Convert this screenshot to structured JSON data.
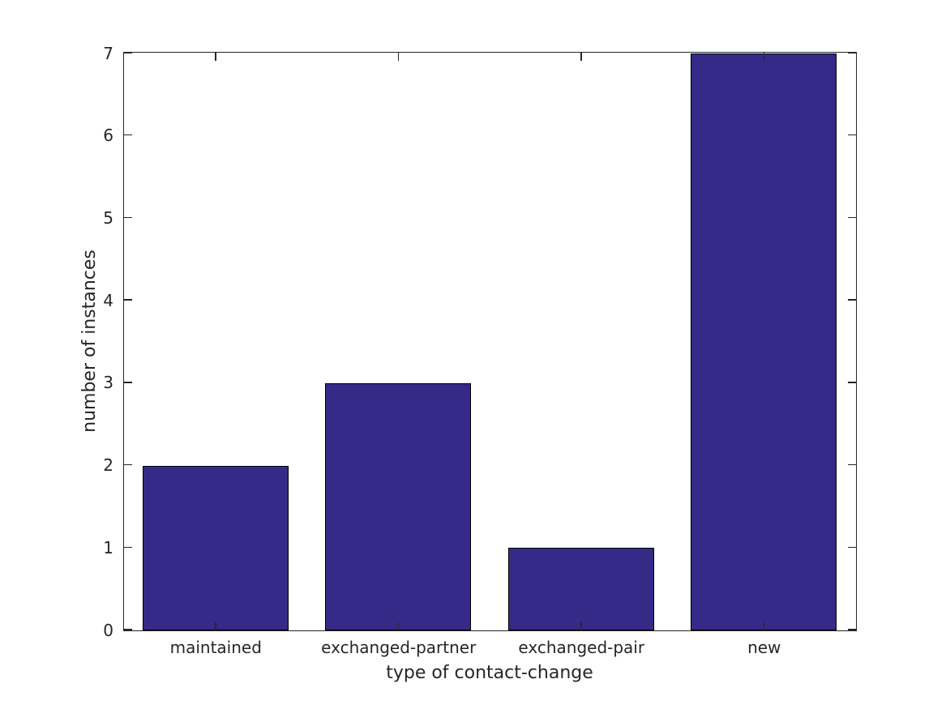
{
  "figure": {
    "background_color": "#ffffff"
  },
  "chart_data": {
    "type": "bar",
    "categories": [
      "maintained",
      "exchanged-partner",
      "exchanged-pair",
      "new"
    ],
    "values": [
      2,
      3,
      1,
      7
    ],
    "xlabel": "type of contact-change",
    "ylabel": "number of instances",
    "ylim": [
      0,
      7
    ],
    "yticks": [
      0,
      1,
      2,
      3,
      4,
      5,
      6,
      7
    ],
    "grid": false,
    "legend": false,
    "box": true,
    "tick_direction": "in",
    "bar_width_fraction": 0.8,
    "colors": {
      "bar_fill": "#352a87",
      "bar_edge": "#000000",
      "axis": "#262626",
      "text": "#262626",
      "background": "#ffffff"
    }
  }
}
